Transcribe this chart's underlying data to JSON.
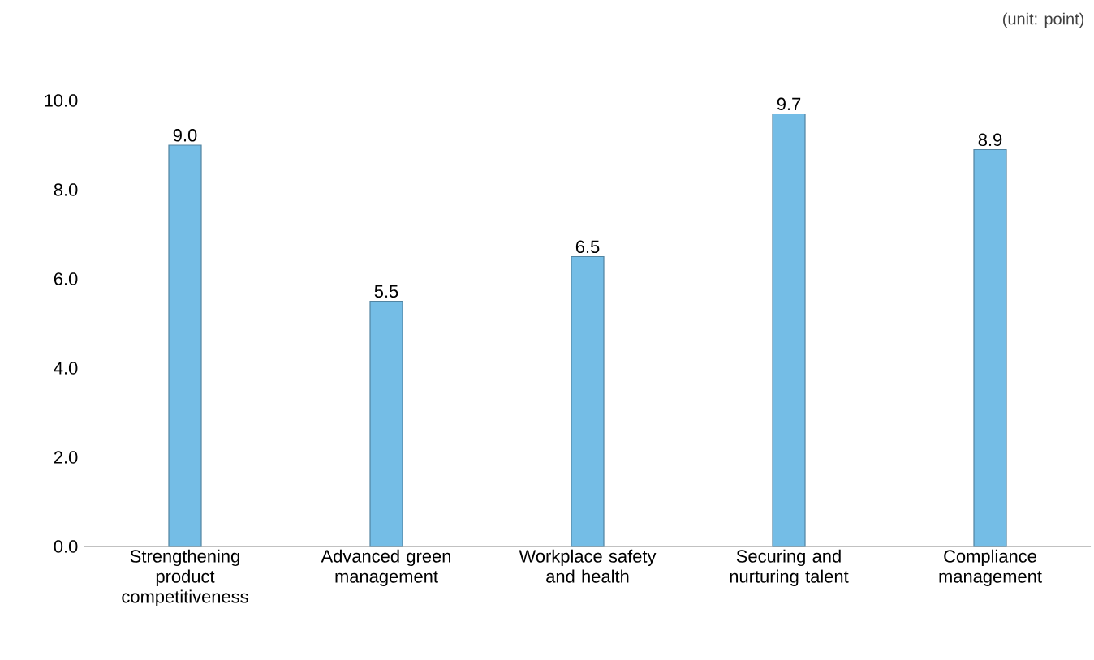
{
  "chart_data": {
    "type": "bar",
    "categories": [
      "Strengthening product competitiveness",
      "Advanced green management",
      "Workplace safety and health",
      "Securing and nurturing talent",
      "Compliance management"
    ],
    "values": [
      9.0,
      5.5,
      6.5,
      9.7,
      8.9
    ],
    "color": "#74bde6",
    "ylim": [
      0,
      10
    ],
    "yticks": [
      {
        "value": 0,
        "label": "0.0"
      },
      {
        "value": 2,
        "label": "2.0"
      },
      {
        "value": 4,
        "label": "4.0"
      },
      {
        "value": 6,
        "label": "6.0"
      },
      {
        "value": 8,
        "label": "8.0"
      },
      {
        "value": 10,
        "label": "10.0"
      }
    ],
    "value_labels": [
      "9.0",
      "5.5",
      "6.5",
      "9.7",
      "8.9"
    ],
    "grid": false,
    "annotations": [
      "(unit: point)"
    ]
  }
}
